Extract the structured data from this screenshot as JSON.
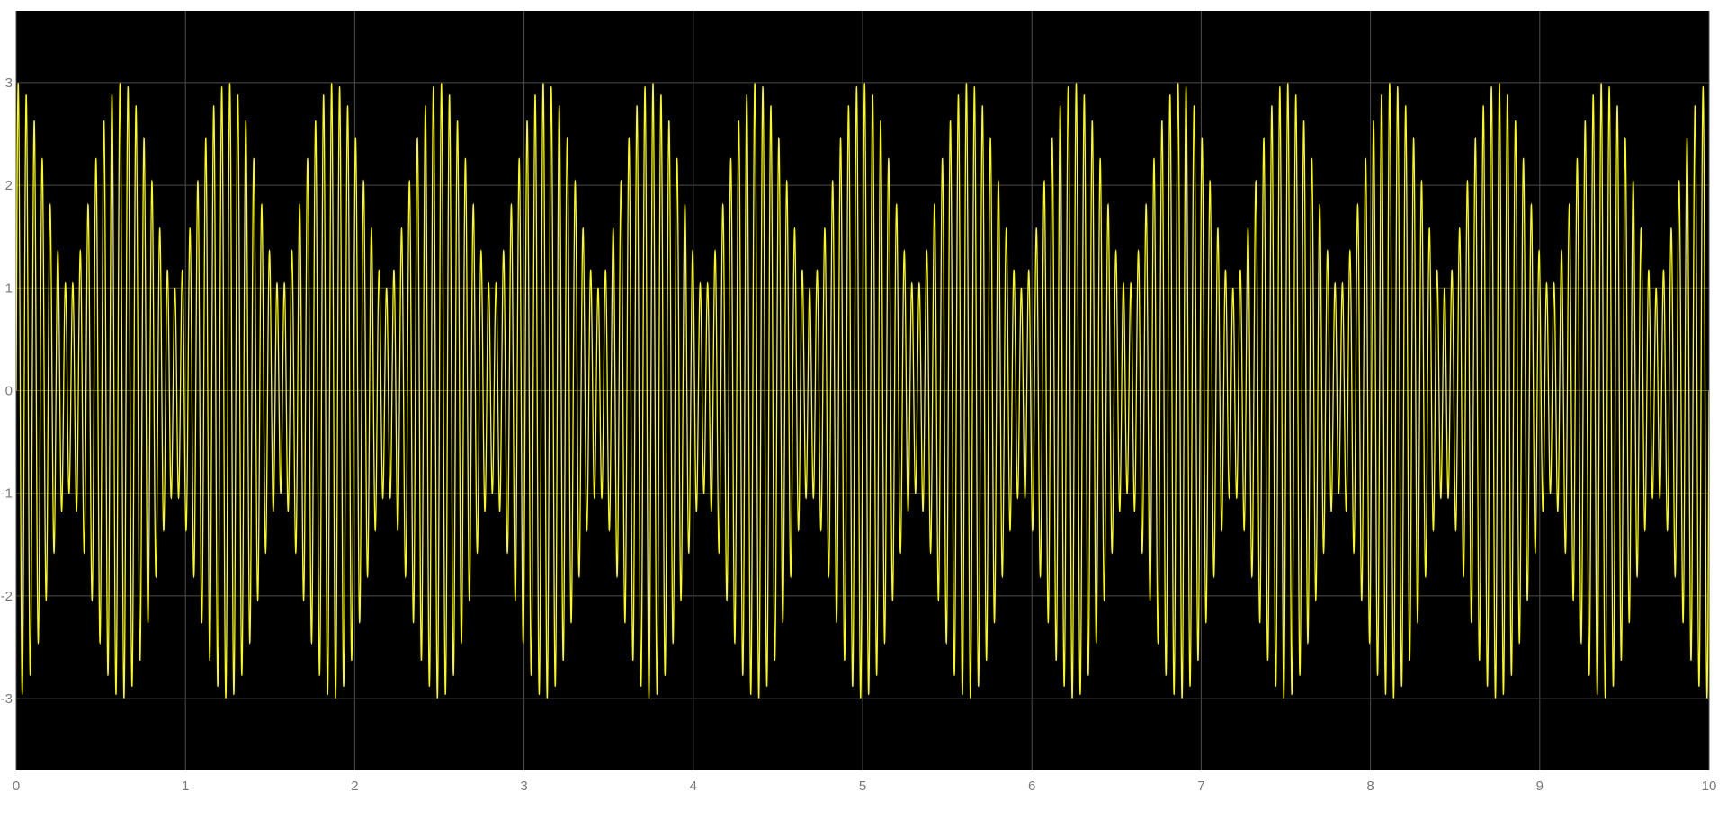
{
  "chart_data": {
    "type": "line",
    "title": "",
    "xlabel": "",
    "ylabel": "",
    "xlim": [
      0,
      10
    ],
    "ylim": [
      -3.7,
      3.7
    ],
    "x_ticks": [
      0,
      1,
      2,
      3,
      4,
      5,
      6,
      7,
      8,
      9,
      10
    ],
    "x_tick_labels": [
      "0",
      "1",
      "2",
      "3",
      "4",
      "5",
      "6",
      "7",
      "8",
      "9",
      "10"
    ],
    "y_ticks": [
      3,
      2,
      1,
      0,
      -1,
      -2,
      -3
    ],
    "y_tick_labels": [
      "3",
      "2",
      "1",
      "0",
      "-1",
      "-2",
      "-3"
    ],
    "grid": true,
    "legend": "none",
    "series": [
      {
        "description_components": [
          {
            "amplitude": 1,
            "frequency_hz": 20
          },
          {
            "amplitude": 2,
            "frequency_hz": 21.6
          }
        ],
        "envelope_max": 3,
        "envelope_min": 1,
        "envelope_period": 0.625,
        "envelope_peaks_x": [
          0.16,
          0.78,
          1.41,
          2.03,
          2.66,
          3.28,
          3.91,
          4.53,
          5.16,
          5.78,
          6.41,
          7.03,
          7.66,
          8.28,
          8.91,
          9.53
        ],
        "color": "#ffff00"
      }
    ],
    "colors": {
      "background": "#000000",
      "figure_background": "#ffffff",
      "grid": "#4d4d4d",
      "tick_label": "#7a7a7a",
      "trace": "#ffff00"
    }
  }
}
